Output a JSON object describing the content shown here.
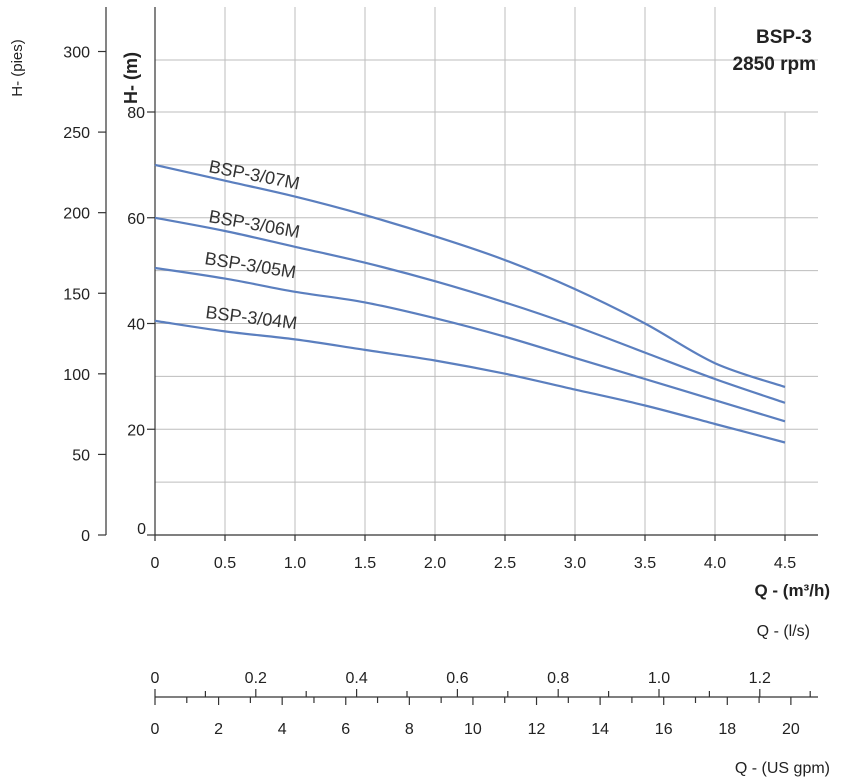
{
  "chart_data": {
    "type": "line",
    "title": "BSP-3",
    "subtitle": "2850 rpm",
    "xlabel": "Q - (m³/h)",
    "ylabel": "H- (m)",
    "ylabel_secondary": "H- (pies)",
    "xlim": [
      0,
      4.75
    ],
    "ylim": [
      0,
      100
    ],
    "grid": true,
    "x_ticks": [
      "0",
      "0.5",
      "1.0",
      "1.5",
      "2.0",
      "2.5",
      "3.0",
      "3.5",
      "4.0",
      "4.5"
    ],
    "x_tick_values": [
      0,
      0.5,
      1.0,
      1.5,
      2.0,
      2.5,
      3.0,
      3.5,
      4.0,
      4.5
    ],
    "y_ticks_m": [
      "0",
      "20",
      "40",
      "60",
      "80"
    ],
    "y_tick_values_m": [
      0,
      20,
      40,
      60,
      80
    ],
    "y_ticks_ft": [
      "0",
      "50",
      "100",
      "150",
      "200",
      "250",
      "300"
    ],
    "y_tick_values_ft": [
      0,
      50,
      100,
      150,
      200,
      250,
      300
    ],
    "secondary_axes": [
      {
        "label": "Q - (l/s)",
        "ticks": [
          "0",
          "0.2",
          "0.4",
          "0.6",
          "0.8",
          "1.0",
          "1.2"
        ],
        "values": [
          0,
          0.2,
          0.4,
          0.6,
          0.8,
          1.0,
          1.2
        ],
        "m3h_per_unit": 3.6
      },
      {
        "label": "Q - (US gpm)",
        "ticks": [
          "0",
          "2",
          "4",
          "6",
          "8",
          "10",
          "12",
          "14",
          "16",
          "18",
          "20"
        ],
        "values": [
          0,
          2,
          4,
          6,
          8,
          10,
          12,
          14,
          16,
          18,
          20
        ],
        "m3h_per_unit": 0.2271
      }
    ],
    "series": [
      {
        "name": "BSP-3/07M",
        "x": [
          0,
          0.5,
          1.0,
          1.5,
          2.0,
          2.5,
          3.0,
          3.5,
          4.0,
          4.5
        ],
        "y": [
          70,
          67,
          64,
          60.5,
          56.5,
          52,
          46.5,
          40,
          32.5,
          28
        ]
      },
      {
        "name": "BSP-3/06M",
        "x": [
          0,
          0.5,
          1.0,
          1.5,
          2.0,
          2.5,
          3.0,
          3.5,
          4.0,
          4.5
        ],
        "y": [
          60,
          57.5,
          54.5,
          51.5,
          48,
          44,
          39.5,
          34.5,
          29.5,
          25
        ]
      },
      {
        "name": "BSP-3/05M",
        "x": [
          0,
          0.5,
          1.0,
          1.5,
          2.0,
          2.5,
          3.0,
          3.5,
          4.0,
          4.5
        ],
        "y": [
          50.5,
          48.5,
          46,
          44,
          41,
          37.5,
          33.5,
          29.5,
          25.5,
          21.5
        ]
      },
      {
        "name": "BSP-3/04M",
        "x": [
          0,
          0.5,
          1.0,
          1.5,
          2.0,
          2.5,
          3.0,
          3.5,
          4.0,
          4.5
        ],
        "y": [
          40.5,
          38.5,
          37,
          35,
          33,
          30.5,
          27.5,
          24.5,
          21,
          17.5
        ]
      }
    ]
  }
}
